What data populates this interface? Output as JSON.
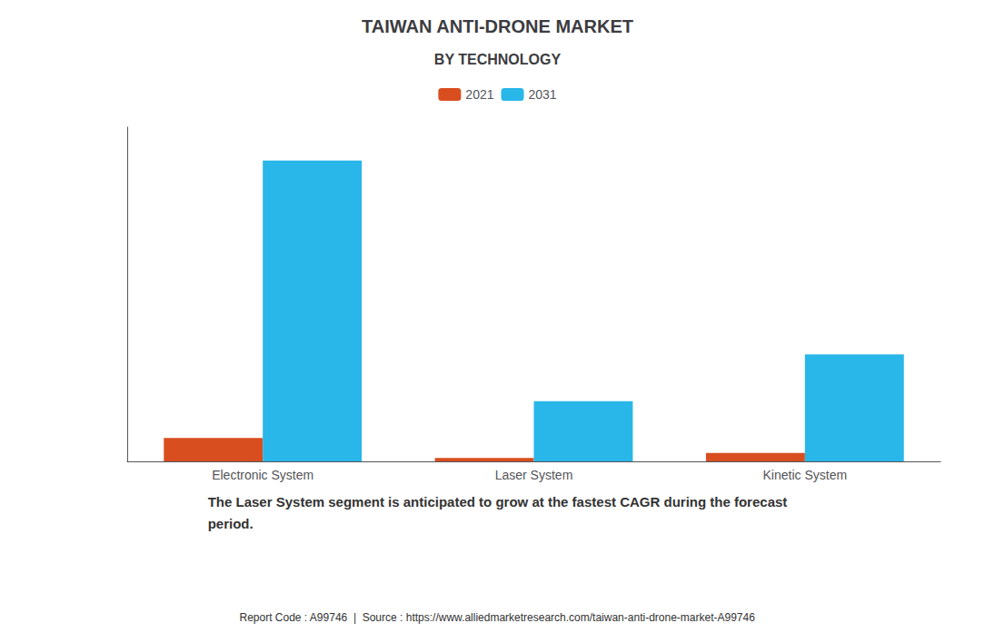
{
  "chart_data": {
    "type": "bar",
    "title": "TAIWAN ANTI-DRONE MARKET",
    "subtitle": "BY TECHNOLOGY",
    "categories": [
      "Electronic System",
      "Laser System",
      "Kinetic System"
    ],
    "series": [
      {
        "name": "2021",
        "color": "#D94E1F",
        "values": [
          7,
          1,
          2.5
        ]
      },
      {
        "name": "2031",
        "color": "#29B6E8",
        "values": [
          90,
          18,
          32
        ]
      }
    ],
    "ylim": [
      0,
      100
    ],
    "yticks": [],
    "grid": false,
    "legend": "top",
    "tick_labels": "x",
    "annotations": [
      "The Laser System segment is anticipated to grow at the fastest CAGR during the forecast\nperiod.",
      "Report Code : A99746  |  Source : https://www.alliedmarketresearch.com/taiwan-anti-drone-market-A99746"
    ]
  }
}
